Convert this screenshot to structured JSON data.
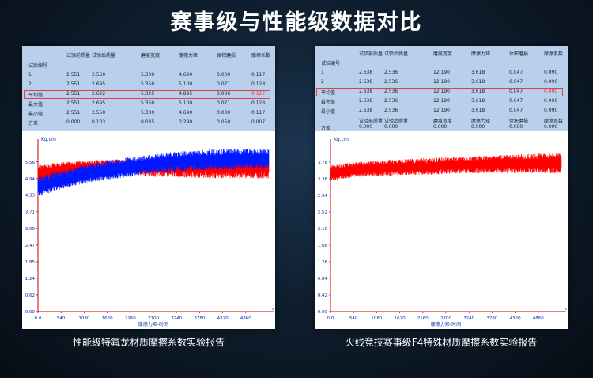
{
  "title": "赛事级与性能级数据对比",
  "left": {
    "caption": "性能级特氟龙材质摩擦系数实验报告",
    "table": {
      "headers": [
        "试验编号",
        "试验前质量",
        "试验后质量",
        "磨痕宽度",
        "摩擦力矩",
        "体积磨损",
        "摩擦系数"
      ],
      "rows": [
        [
          "1",
          "2.551",
          "2.550",
          "5.300",
          "4.690",
          "0.000",
          "0.117"
        ],
        [
          "2",
          "2.551",
          "2.695",
          "5.350",
          "5.100",
          "0.071",
          "0.128"
        ],
        [
          "平均值",
          "2.551",
          "2.622",
          "5.325",
          "4.895",
          "0.036",
          "0.122"
        ],
        [
          "最大值",
          "2.551",
          "2.695",
          "5.350",
          "5.100",
          "0.071",
          "0.128"
        ],
        [
          "最小值",
          "2.551",
          "2.550",
          "5.300",
          "4.690",
          "0.000",
          "0.117"
        ],
        [
          "方差",
          "0.000",
          "0.103",
          "0.035",
          "0.290",
          "0.050",
          "0.007"
        ]
      ]
    },
    "chart_data": {
      "type": "line",
      "ylabel": "Kg.cm",
      "xlabel": "摩擦力矩-时间",
      "y_ticks": [
        "5.56",
        "4.94",
        "4.33",
        "3.71",
        "3.09",
        "2.47",
        "1.85",
        "1.24",
        "0.62",
        "0.00"
      ],
      "x_ticks": [
        "0.0",
        "540",
        "1080",
        "1620",
        "2160",
        "2700",
        "3240",
        "3780",
        "4320",
        "4860"
      ],
      "x_end_label": "s",
      "ylim": [
        0,
        6.17
      ],
      "xlim": [
        0,
        5400
      ],
      "series": [
        {
          "color": "#ff0000",
          "low": [
            4.75,
            5.0,
            5.1,
            5.1,
            5.1,
            5.0,
            5.0,
            4.95,
            4.95,
            4.95,
            4.95
          ],
          "high": [
            5.45,
            5.55,
            5.6,
            5.65,
            5.65,
            5.7,
            5.7,
            5.75,
            5.75,
            5.75,
            5.75
          ]
        },
        {
          "color": "#0018ff",
          "low": [
            4.25,
            4.55,
            4.75,
            4.9,
            5.0,
            5.15,
            5.2,
            5.25,
            5.25,
            5.3,
            5.3
          ],
          "high": [
            5.0,
            5.25,
            5.45,
            5.6,
            5.75,
            5.85,
            5.95,
            6.0,
            6.05,
            6.05,
            6.05
          ]
        }
      ]
    }
  },
  "right": {
    "caption": "火线竞技赛事级F4特殊材质摩擦系数实验报告",
    "table": {
      "rows": [
        [
          "",
          "试验前质量",
          "试验后质量",
          "磨痕宽度",
          "摩擦力矩",
          "体积磨损",
          "摩擦系数"
        ],
        [
          "试验编号",
          "",
          "",
          "",
          "",
          "",
          ""
        ],
        [
          "1",
          "2.638",
          "2.536",
          "12.190",
          "3.618",
          "0.047",
          "0.090"
        ],
        [
          "2",
          "2.638",
          "2.536",
          "12.190",
          "3.618",
          "0.047",
          "0.090"
        ],
        [
          "平均值",
          "2.638",
          "2.536",
          "12.190",
          "3.618",
          "0.047",
          "0.090"
        ],
        [
          "最大值",
          "2.638",
          "2.536",
          "12.190",
          "3.618",
          "0.047",
          "0.090"
        ],
        [
          "最小值",
          "2.638",
          "2.536",
          "12.190",
          "3.618",
          "0.047",
          "0.090"
        ],
        [
          "",
          "试验前质量",
          "试验后质量",
          "磨痕宽度",
          "摩擦力矩",
          "体积磨损",
          "摩擦系数"
        ],
        [
          "方差",
          "0.000",
          "0.000",
          "0.000",
          "0.000",
          "0.000",
          "0.000"
        ]
      ]
    },
    "chart_data": {
      "type": "line",
      "ylabel": "Kg.cm",
      "xlabel": "摩擦力矩-时间",
      "y_ticks": [
        "3.78",
        "3.36",
        "2.94",
        "2.52",
        "2.10",
        "1.68",
        "1.26",
        "0.84",
        "0.42",
        "0.00"
      ],
      "x_ticks": [
        "0.0",
        "540",
        "1080",
        "1620",
        "2160",
        "2700",
        "3240",
        "3780",
        "4320",
        "4860"
      ],
      "x_end_label": "s",
      "ylim": [
        0,
        4.2
      ],
      "xlim": [
        0,
        5400
      ],
      "series": [
        {
          "color": "#ff0000",
          "low": [
            3.3,
            3.4,
            3.42,
            3.45,
            3.45,
            3.48,
            3.5,
            3.5,
            3.5,
            3.5,
            3.5
          ],
          "high": [
            3.7,
            3.78,
            3.82,
            3.85,
            3.88,
            3.9,
            3.92,
            3.95,
            3.97,
            4.0,
            4.0
          ]
        }
      ]
    }
  }
}
